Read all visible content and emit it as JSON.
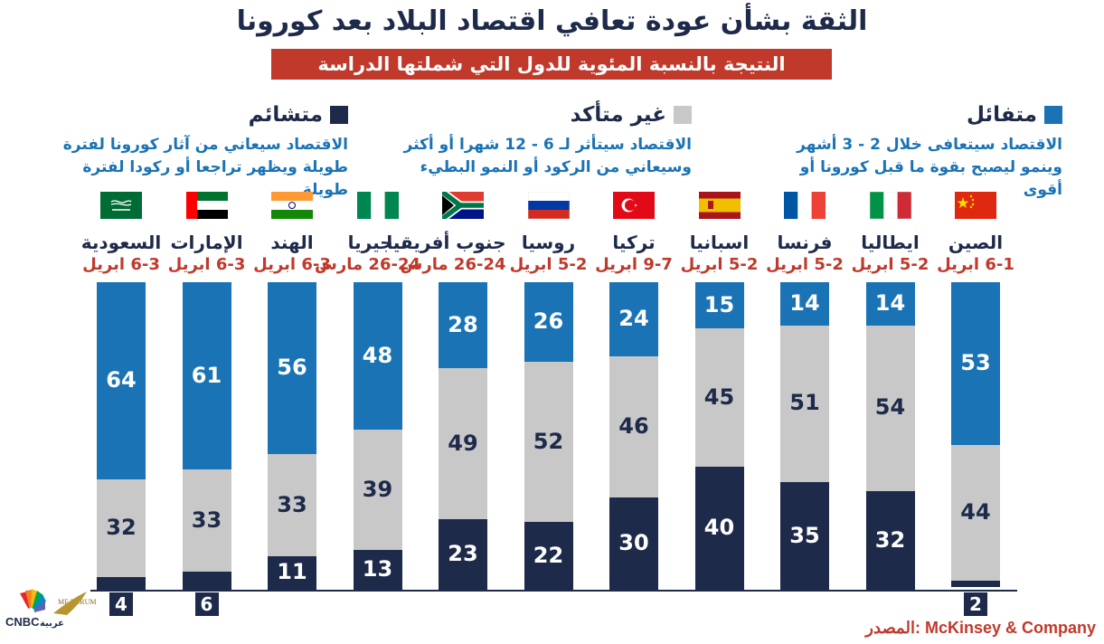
{
  "title": "الثقة بشأن عودة تعافي اقتصاد البلاد بعد كورونا",
  "subtitle": "النتيجة بالنسبة المئوية للدول التي شملتها الدراسة",
  "legend": {
    "optimistic": {
      "label": "متفائل",
      "desc": "الاقتصاد سيتعافى خلال 2 - 3 أشهر وينمو ليصبح بقوة ما قبل كورونا أو أقوى",
      "color": "#1a73b5"
    },
    "uncertain": {
      "label": "غير متأكد",
      "desc": "الاقتصاد سيتأثر لـ 6 - 12 شهرا أو أكثر وسيعاني من الركود أو النمو البطيء",
      "color": "#c8c8c8"
    },
    "pessimistic": {
      "label": "متشائم",
      "desc": "الاقتصاد سيعاني من آثار كورونا لفترة طويلة ويظهر تراجعا أو ركودا لفترة طويلة",
      "color": "#1e2a4a"
    }
  },
  "source": "المصدر: McKinsey & Company",
  "logo": {
    "brand": "CNBC",
    "text": "عربية",
    "forum": "ME FORUM"
  },
  "chart_data": {
    "type": "bar",
    "stacked": true,
    "orientation": "vertical",
    "categories": [
      "الصين",
      "ايطاليا",
      "فرنسا",
      "اسبانيا",
      "تركيا",
      "روسيا",
      "جنوب أفريقيا",
      "نيجيريا",
      "الهند",
      "الإمارات",
      "السعودية"
    ],
    "dates": [
      "6-1 ابريل",
      "5-2 ابريل",
      "5-2 ابريل",
      "5-2 ابريل",
      "9-7 ابريل",
      "5-2 ابريل",
      "26-24 مارس",
      "26-24 مارس",
      "6-3 ابريل",
      "6-3 ابريل",
      "6-3 ابريل"
    ],
    "flags": [
      "china",
      "italy",
      "france",
      "spain",
      "turkey",
      "russia",
      "south-africa",
      "nigeria",
      "india",
      "uae",
      "saudi-arabia"
    ],
    "series": [
      {
        "name": "متفائل",
        "values": [
          53,
          14,
          14,
          15,
          24,
          26,
          28,
          48,
          56,
          61,
          64
        ],
        "color": "#1a73b5",
        "text_color": "#ffffff"
      },
      {
        "name": "غير متأكد",
        "values": [
          44,
          54,
          51,
          45,
          46,
          52,
          49,
          39,
          33,
          33,
          32
        ],
        "color": "#c8c8c8",
        "text_color": "#1e2a4a"
      },
      {
        "name": "متشائم",
        "values": [
          2,
          32,
          35,
          40,
          30,
          22,
          23,
          13,
          11,
          6,
          4
        ],
        "color": "#1e2a4a",
        "text_color": "#ffffff"
      }
    ],
    "ylim": [
      0,
      100
    ],
    "grid": false,
    "legend_position": "top"
  }
}
